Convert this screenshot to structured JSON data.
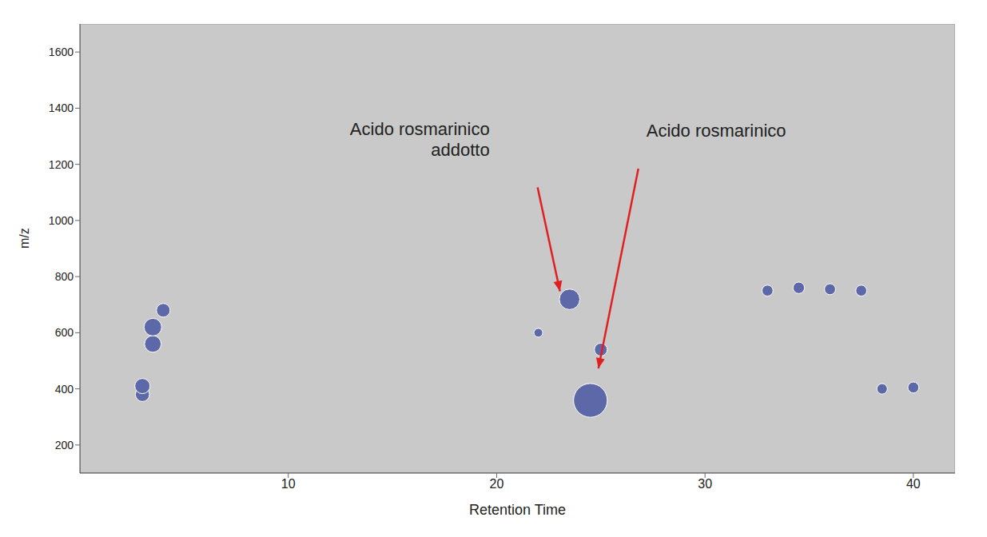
{
  "chart_data": {
    "type": "scatter",
    "x_label": "Retention Time",
    "y_label": "m/z",
    "x": [
      3,
      3,
      3.5,
      3.5,
      4,
      22,
      23.5,
      24.5,
      25,
      33,
      34.5,
      36,
      37.5,
      38.5,
      40
    ],
    "y": [
      380,
      410,
      560,
      620,
      680,
      600,
      719,
      359,
      540,
      750,
      760,
      755,
      750,
      400,
      405
    ],
    "size": [
      15,
      18,
      22,
      25,
      14,
      4,
      35,
      100,
      12,
      8,
      9,
      8,
      8,
      7,
      8
    ],
    "size_lim": [
      0,
      100
    ],
    "xlim": [
      0,
      42
    ],
    "xticks": [
      10,
      20,
      30,
      40
    ],
    "ylim": [
      100,
      1700
    ],
    "yticks": [
      200,
      400,
      600,
      800,
      1000,
      1200,
      1400,
      1600
    ],
    "color": "#5d68a8",
    "grid": false,
    "annotations": [
      {
        "text": "Acido rosmarinico addotto",
        "x": 23.5,
        "y": 719,
        "color": "#e02020"
      },
      {
        "text": "Acido rosmarinico",
        "x": 24.5,
        "y": 359,
        "color": "#e02020"
      }
    ]
  }
}
